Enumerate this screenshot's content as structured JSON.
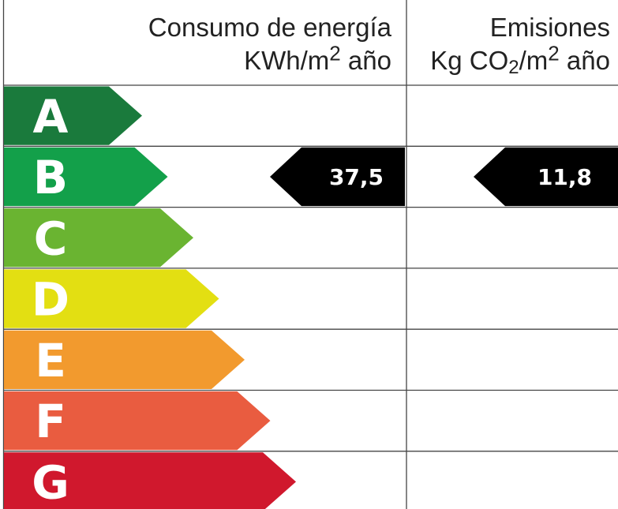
{
  "header": {
    "consumo": {
      "title": "Consumo de energía",
      "unit_prefix": "KWh/m",
      "unit_sup": "2",
      "unit_suffix": " año"
    },
    "emisiones": {
      "title": "Emisiones",
      "unit_prefix": "Kg CO",
      "unit_sub": "2",
      "unit_mid": "/m",
      "unit_sup": "2",
      "unit_suffix": " año"
    }
  },
  "ratings": [
    {
      "letter": "A",
      "color": "#1a7a3c"
    },
    {
      "letter": "B",
      "color": "#13a04a"
    },
    {
      "letter": "C",
      "color": "#6ab431"
    },
    {
      "letter": "D",
      "color": "#e3df12"
    },
    {
      "letter": "E",
      "color": "#f29a2e"
    },
    {
      "letter": "F",
      "color": "#e95c40"
    },
    {
      "letter": "G",
      "color": "#d0182d"
    }
  ],
  "values": {
    "consumo": {
      "value": "37,5",
      "rating": "B"
    },
    "emisiones": {
      "value": "11,8",
      "rating": "B"
    }
  }
}
